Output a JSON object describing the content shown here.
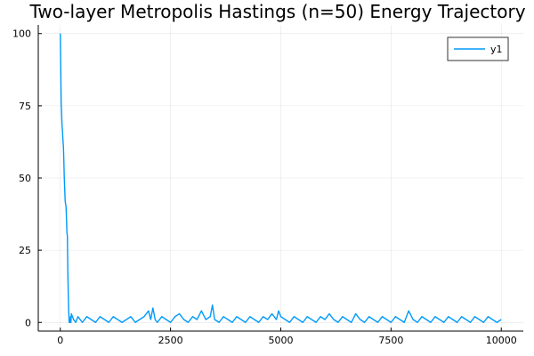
{
  "chart_data": {
    "type": "line",
    "title": "Two-layer Metropolis Hastings (n=50) Energy Trajectory",
    "xlabel": "",
    "ylabel": "",
    "xlim": [
      -500,
      10500
    ],
    "ylim": [
      -3,
      103
    ],
    "xticks": [
      0,
      2500,
      5000,
      7500,
      10000
    ],
    "xtick_labels": [
      "0",
      "2500",
      "5000",
      "7500",
      "10000"
    ],
    "yticks": [
      0,
      25,
      50,
      75,
      100
    ],
    "ytick_labels": [
      "0",
      "25",
      "50",
      "75",
      "100"
    ],
    "grid": true,
    "legend": {
      "position": "top-right",
      "entries": [
        "y1"
      ]
    },
    "series": [
      {
        "name": "y1",
        "color": "#009af9",
        "x": [
          0,
          10,
          20,
          30,
          40,
          50,
          60,
          70,
          80,
          90,
          100,
          110,
          120,
          130,
          140,
          150,
          160,
          170,
          180,
          190,
          200,
          210,
          220,
          230,
          240,
          250,
          300,
          350,
          400,
          450,
          500,
          600,
          700,
          800,
          900,
          1000,
          1100,
          1200,
          1300,
          1400,
          1500,
          1600,
          1700,
          1800,
          1900,
          2000,
          2050,
          2100,
          2150,
          2200,
          2300,
          2400,
          2500,
          2600,
          2700,
          2800,
          2900,
          3000,
          3100,
          3200,
          3300,
          3400,
          3450,
          3500,
          3600,
          3700,
          3800,
          3900,
          4000,
          4100,
          4200,
          4300,
          4400,
          4500,
          4600,
          4700,
          4800,
          4900,
          4950,
          5000,
          5100,
          5200,
          5300,
          5400,
          5500,
          5600,
          5700,
          5800,
          5900,
          6000,
          6100,
          6200,
          6300,
          6400,
          6500,
          6600,
          6700,
          6800,
          6900,
          7000,
          7100,
          7200,
          7300,
          7400,
          7500,
          7600,
          7700,
          7800,
          7900,
          8000,
          8100,
          8200,
          8300,
          8400,
          8500,
          8600,
          8700,
          8800,
          8900,
          9000,
          9100,
          9200,
          9300,
          9400,
          9500,
          9600,
          9700,
          9800,
          9900,
          10000
        ],
        "y": [
          100,
          88,
          76,
          72,
          68,
          66,
          63,
          61,
          56,
          50,
          46,
          42,
          41,
          40,
          36,
          31,
          30,
          18,
          10,
          4,
          0,
          1,
          0,
          2,
          0,
          3,
          1,
          0,
          2,
          1,
          0,
          2,
          1,
          0,
          2,
          1,
          0,
          2,
          1,
          0,
          1,
          2,
          0,
          1,
          2,
          4,
          1,
          5,
          1,
          0,
          2,
          1,
          0,
          2,
          3,
          1,
          0,
          2,
          1,
          4,
          1,
          2,
          6,
          1,
          0,
          2,
          1,
          0,
          2,
          1,
          0,
          2,
          1,
          0,
          2,
          1,
          3,
          1,
          4,
          2,
          1,
          0,
          2,
          1,
          0,
          2,
          1,
          0,
          2,
          1,
          3,
          1,
          0,
          2,
          1,
          0,
          3,
          1,
          0,
          2,
          1,
          0,
          2,
          1,
          0,
          2,
          1,
          0,
          4,
          1,
          0,
          2,
          1,
          0,
          2,
          1,
          0,
          2,
          1,
          0,
          2,
          1,
          0,
          2,
          1,
          0,
          2,
          1,
          0,
          1
        ]
      }
    ]
  }
}
